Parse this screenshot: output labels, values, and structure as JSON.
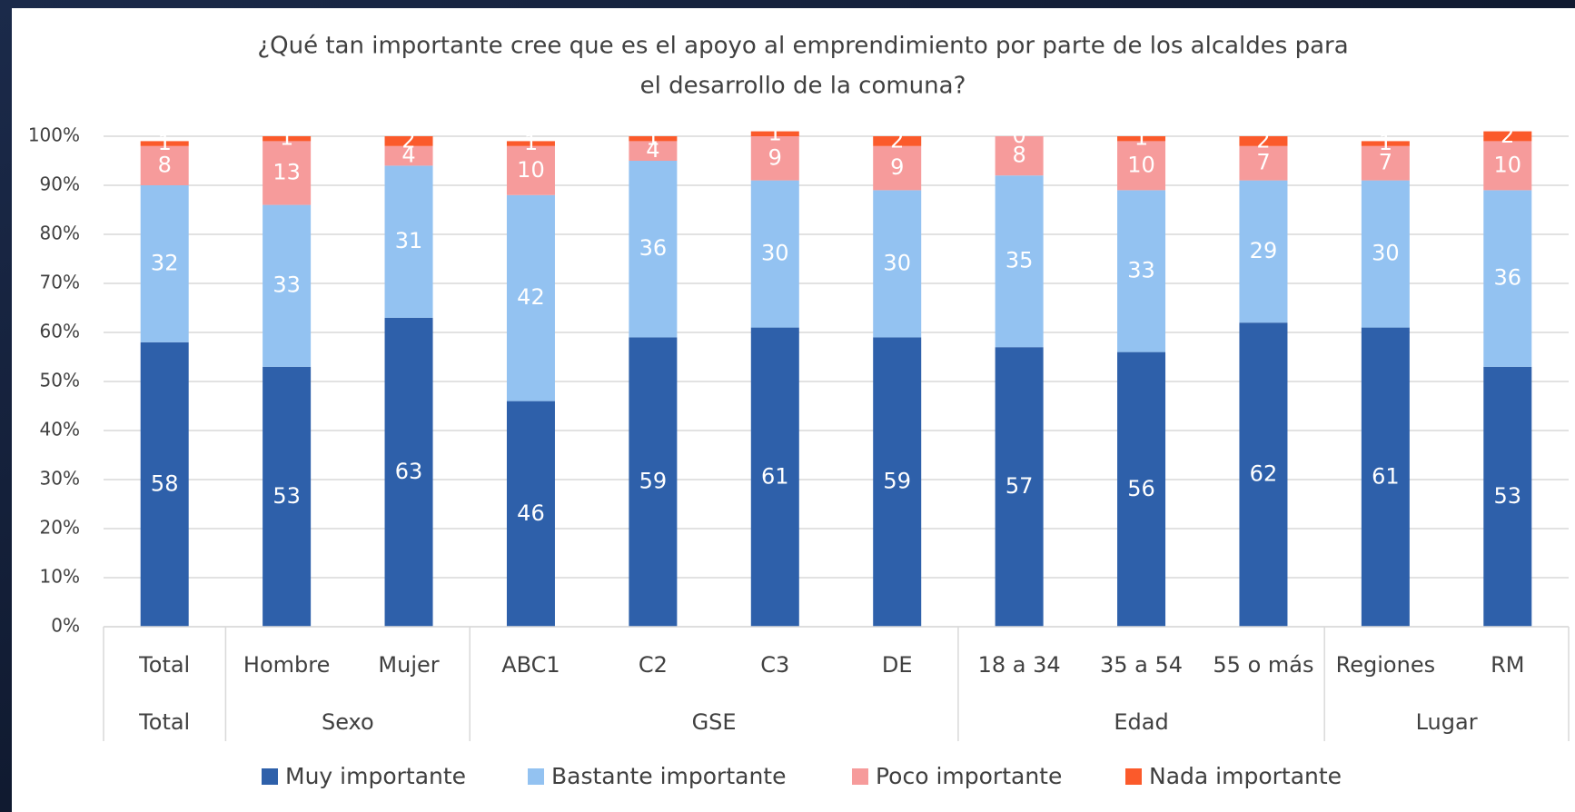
{
  "chart_data": {
    "type": "stacked_bar",
    "title": [
      "¿Qué tan importante cree que es el apoyo al emprendimiento por parte de los alcaldes para",
      "el desarrollo de la comuna?"
    ],
    "categories": [
      "Total",
      "Hombre",
      "Mujer",
      "ABC1",
      "C2",
      "C3",
      "DE",
      "18 a 34",
      "35 a 54",
      "55 o más",
      "Regiones",
      "RM"
    ],
    "groups": [
      {
        "label": "Total",
        "span": 1
      },
      {
        "label": "Sexo",
        "span": 2
      },
      {
        "label": "GSE",
        "span": 4
      },
      {
        "label": "Edad",
        "span": 3
      },
      {
        "label": "Lugar",
        "span": 2
      }
    ],
    "series": [
      {
        "name": "Muy importante",
        "color": "#2e60aa",
        "values": [
          58,
          53,
          63,
          46,
          59,
          61,
          59,
          57,
          56,
          62,
          61,
          53
        ]
      },
      {
        "name": "Bastante importante",
        "color": "#93c2f1",
        "values": [
          32,
          33,
          31,
          42,
          36,
          30,
          30,
          35,
          33,
          29,
          30,
          36
        ]
      },
      {
        "name": "Poco importante",
        "color": "#f69b9b",
        "values": [
          8,
          13,
          4,
          10,
          4,
          9,
          9,
          8,
          10,
          7,
          7,
          10
        ]
      },
      {
        "name": "Nada importante",
        "color": "#fb5a2b",
        "values": [
          1,
          1,
          2,
          1,
          1,
          1,
          2,
          0,
          1,
          2,
          1,
          2
        ]
      }
    ],
    "ylim": [
      0,
      100
    ],
    "yticks": [
      {
        "value": 0,
        "label": "0%"
      },
      {
        "value": 10,
        "label": "10%"
      },
      {
        "value": 20,
        "label": "20%"
      },
      {
        "value": 30,
        "label": "30%"
      },
      {
        "value": 40,
        "label": "40%"
      },
      {
        "value": 50,
        "label": "50%"
      },
      {
        "value": 60,
        "label": "60%"
      },
      {
        "value": 70,
        "label": "70%"
      },
      {
        "value": 80,
        "label": "80%"
      },
      {
        "value": 90,
        "label": "90%"
      },
      {
        "value": 100,
        "label": "100%"
      }
    ],
    "grid": true,
    "legend": "bottom"
  }
}
